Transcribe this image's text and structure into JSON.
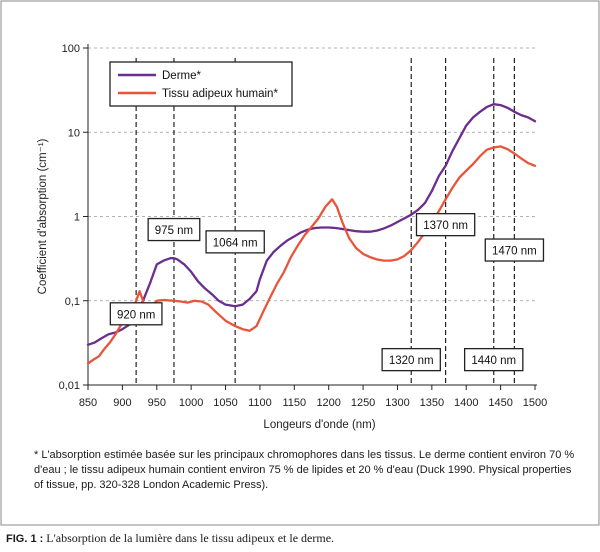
{
  "chart_data": {
    "type": "line",
    "title": "",
    "xlabel": "Longeurs d'onde (nm)",
    "ylabel": "Coefficient d'absorption (cm⁻¹)",
    "xlim": [
      850,
      1500
    ],
    "ylim": [
      0.01,
      100
    ],
    "yscale": "log",
    "x_ticks": [
      850,
      900,
      950,
      1000,
      1050,
      1100,
      1150,
      1200,
      1250,
      1300,
      1350,
      1400,
      1450,
      1500
    ],
    "y_ticks": [
      {
        "value": 0.01,
        "label": "0,01"
      },
      {
        "value": 0.1,
        "label": "0,1"
      },
      {
        "value": 1,
        "label": "1"
      },
      {
        "value": 10,
        "label": "10"
      },
      {
        "value": 100,
        "label": "100"
      }
    ],
    "grid": "horizontal dashed",
    "legend_position": "top-left",
    "series": [
      {
        "name": "Derme*",
        "color": "#6b2d8e",
        "points": [
          [
            850,
            0.03
          ],
          [
            860,
            0.032
          ],
          [
            870,
            0.036
          ],
          [
            880,
            0.04
          ],
          [
            890,
            0.042
          ],
          [
            900,
            0.046
          ],
          [
            910,
            0.052
          ],
          [
            920,
            0.07
          ],
          [
            930,
            0.1
          ],
          [
            940,
            0.16
          ],
          [
            950,
            0.27
          ],
          [
            960,
            0.3
          ],
          [
            970,
            0.32
          ],
          [
            975,
            0.32
          ],
          [
            980,
            0.31
          ],
          [
            990,
            0.27
          ],
          [
            1000,
            0.22
          ],
          [
            1010,
            0.17
          ],
          [
            1020,
            0.14
          ],
          [
            1030,
            0.12
          ],
          [
            1040,
            0.1
          ],
          [
            1050,
            0.09
          ],
          [
            1064,
            0.086
          ],
          [
            1075,
            0.09
          ],
          [
            1085,
            0.105
          ],
          [
            1095,
            0.13
          ],
          [
            1100,
            0.18
          ],
          [
            1110,
            0.3
          ],
          [
            1120,
            0.38
          ],
          [
            1130,
            0.45
          ],
          [
            1140,
            0.52
          ],
          [
            1150,
            0.58
          ],
          [
            1160,
            0.65
          ],
          [
            1170,
            0.7
          ],
          [
            1180,
            0.73
          ],
          [
            1190,
            0.74
          ],
          [
            1200,
            0.74
          ],
          [
            1210,
            0.73
          ],
          [
            1220,
            0.71
          ],
          [
            1230,
            0.69
          ],
          [
            1240,
            0.67
          ],
          [
            1250,
            0.66
          ],
          [
            1260,
            0.66
          ],
          [
            1270,
            0.68
          ],
          [
            1280,
            0.72
          ],
          [
            1290,
            0.78
          ],
          [
            1300,
            0.86
          ],
          [
            1310,
            0.95
          ],
          [
            1320,
            1.05
          ],
          [
            1330,
            1.2
          ],
          [
            1340,
            1.45
          ],
          [
            1350,
            2.0
          ],
          [
            1360,
            3.0
          ],
          [
            1370,
            4.0
          ],
          [
            1380,
            6.0
          ],
          [
            1390,
            8.5
          ],
          [
            1400,
            12.0
          ],
          [
            1410,
            15.0
          ],
          [
            1420,
            17.5
          ],
          [
            1430,
            20.0
          ],
          [
            1440,
            21.5
          ],
          [
            1450,
            21.0
          ],
          [
            1460,
            19.5
          ],
          [
            1470,
            17.5
          ],
          [
            1480,
            16.0
          ],
          [
            1490,
            15.0
          ],
          [
            1500,
            13.5
          ]
        ]
      },
      {
        "name": "Tissu adipeux humain*",
        "color": "#e8553a",
        "points": [
          [
            850,
            0.018
          ],
          [
            858,
            0.02
          ],
          [
            866,
            0.022
          ],
          [
            874,
            0.027
          ],
          [
            882,
            0.032
          ],
          [
            890,
            0.04
          ],
          [
            900,
            0.055
          ],
          [
            910,
            0.075
          ],
          [
            918,
            0.09
          ],
          [
            925,
            0.13
          ],
          [
            930,
            0.1
          ],
          [
            935,
            0.07
          ],
          [
            940,
            0.072
          ],
          [
            945,
            0.09
          ],
          [
            950,
            0.1
          ],
          [
            960,
            0.102
          ],
          [
            975,
            0.1
          ],
          [
            985,
            0.098
          ],
          [
            995,
            0.095
          ],
          [
            1005,
            0.1
          ],
          [
            1015,
            0.098
          ],
          [
            1025,
            0.09
          ],
          [
            1035,
            0.075
          ],
          [
            1050,
            0.058
          ],
          [
            1064,
            0.05
          ],
          [
            1075,
            0.046
          ],
          [
            1085,
            0.044
          ],
          [
            1095,
            0.05
          ],
          [
            1105,
            0.075
          ],
          [
            1115,
            0.11
          ],
          [
            1125,
            0.16
          ],
          [
            1135,
            0.22
          ],
          [
            1145,
            0.33
          ],
          [
            1155,
            0.45
          ],
          [
            1165,
            0.6
          ],
          [
            1175,
            0.75
          ],
          [
            1185,
            0.95
          ],
          [
            1195,
            1.3
          ],
          [
            1205,
            1.6
          ],
          [
            1212,
            1.3
          ],
          [
            1220,
            0.85
          ],
          [
            1230,
            0.55
          ],
          [
            1240,
            0.42
          ],
          [
            1250,
            0.36
          ],
          [
            1260,
            0.33
          ],
          [
            1270,
            0.31
          ],
          [
            1280,
            0.3
          ],
          [
            1290,
            0.3
          ],
          [
            1300,
            0.31
          ],
          [
            1310,
            0.34
          ],
          [
            1320,
            0.4
          ],
          [
            1330,
            0.5
          ],
          [
            1340,
            0.65
          ],
          [
            1350,
            0.85
          ],
          [
            1360,
            1.15
          ],
          [
            1370,
            1.6
          ],
          [
            1380,
            2.2
          ],
          [
            1390,
            2.9
          ],
          [
            1400,
            3.5
          ],
          [
            1410,
            4.2
          ],
          [
            1420,
            5.2
          ],
          [
            1430,
            6.2
          ],
          [
            1440,
            6.6
          ],
          [
            1450,
            6.8
          ],
          [
            1460,
            6.3
          ],
          [
            1470,
            5.6
          ],
          [
            1480,
            4.9
          ],
          [
            1490,
            4.3
          ],
          [
            1500,
            4.0
          ]
        ]
      }
    ],
    "annotations": [
      {
        "x": 920,
        "label": "920 nm",
        "box_y": 0.07
      },
      {
        "x": 975,
        "label": "975 nm",
        "box_y": 0.7
      },
      {
        "x": 1064,
        "label": "1064 nm",
        "box_y": 0.5
      },
      {
        "x": 1320,
        "label": "1320 nm",
        "box_y": 0.02
      },
      {
        "x": 1370,
        "label": "1370 nm",
        "box_y": 0.8
      },
      {
        "x": 1440,
        "label": "1440 nm",
        "box_y": 0.02
      },
      {
        "x": 1470,
        "label": "1470 nm",
        "box_y": 0.4
      }
    ]
  },
  "footnote": "* L'absorption estimée basée sur les principaux chromophores dans les tissus. Le derme contient environ 70 % d'eau ; le tissu adipeux humain contient environ 75 % de lipides et 20 % d'eau (Duck 1990. Physical properties of tissue, pp. 320-328 London Academic Press).",
  "caption": {
    "prefix": "FIG. 1 :",
    "text": " L'absorption de la lumière dans le tissu adipeux et le derme."
  }
}
